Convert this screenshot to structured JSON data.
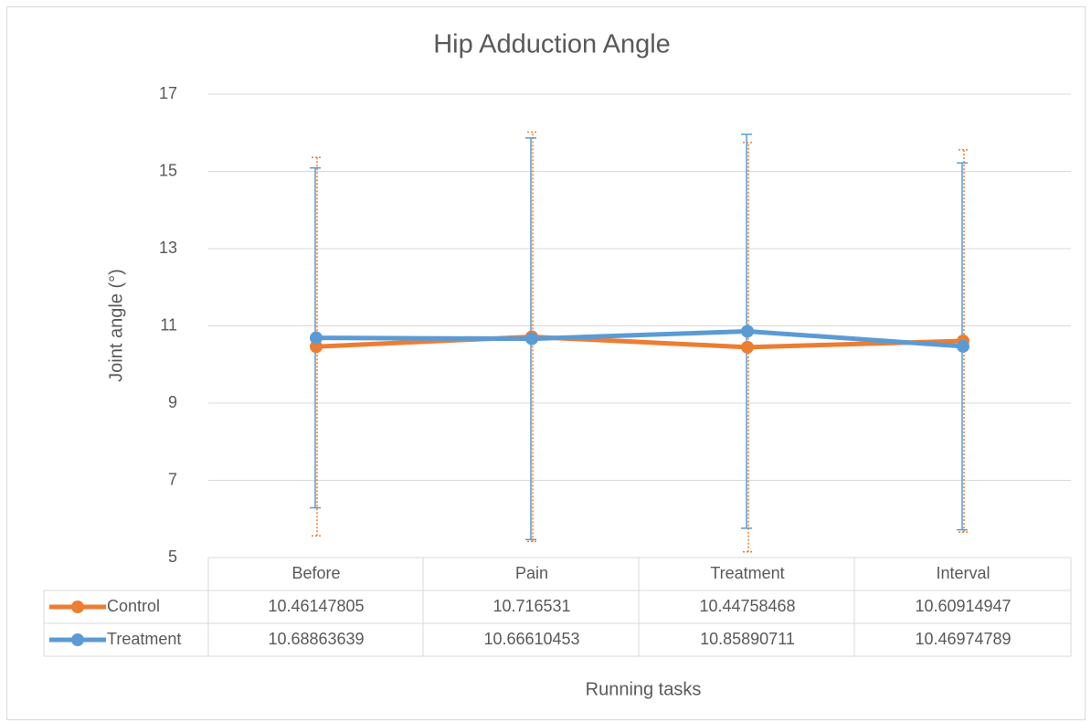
{
  "chart_data": {
    "type": "line",
    "title": "Hip Adduction Angle",
    "y_label": "Joint angle (°)",
    "x_label": "Running tasks",
    "categories": [
      "Before",
      "Pain",
      "Treatment",
      "Interval"
    ],
    "series": [
      {
        "name": "Control",
        "color": "#ed7d31",
        "values": [
          10.46147805,
          10.716531,
          10.44758468,
          10.60914947
        ],
        "errors": [
          4.9,
          5.3,
          5.3,
          4.95
        ]
      },
      {
        "name": "Treatment",
        "color": "#5b9bd5",
        "values": [
          10.68863639,
          10.66610453,
          10.85890711,
          10.46974789
        ],
        "errors": [
          4.4,
          5.2,
          5.1,
          4.75
        ]
      }
    ],
    "ylim": [
      5,
      17
    ],
    "yticks": [
      5,
      7,
      9,
      11,
      13,
      15,
      17
    ],
    "grid": true
  }
}
